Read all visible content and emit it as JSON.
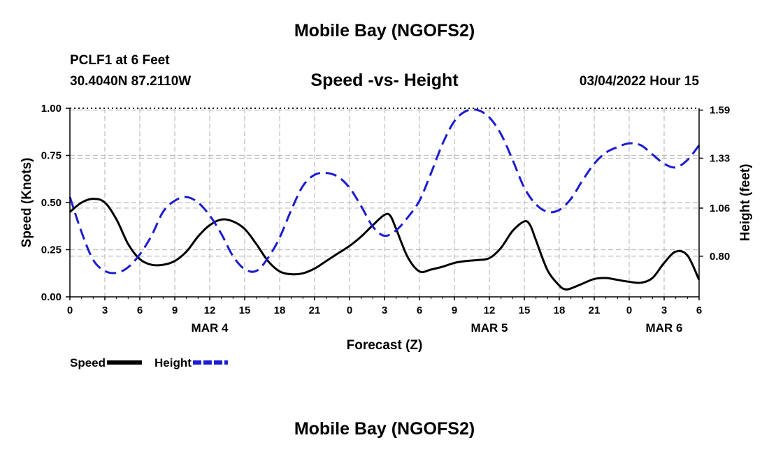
{
  "header": {
    "title": "Mobile Bay (NGOFS2)",
    "station": "PCLF1 at 6 Feet",
    "coords": "30.4040N  87.2110W",
    "subtitle": "Speed -vs- Height",
    "datetime": "03/04/2022 Hour 15"
  },
  "footer": {
    "title": "Mobile Bay (NGOFS2)"
  },
  "chart_data": {
    "type": "line",
    "title": "Speed -vs- Height",
    "xlabel": "Forecast (Z)",
    "ylabel": "Speed (Knots)",
    "y2label": "Height (feet)",
    "x_hours": [
      0,
      3,
      6,
      9,
      12,
      15,
      18,
      21,
      24,
      27,
      30,
      33,
      36,
      39,
      42,
      45,
      48,
      51,
      54
    ],
    "x_tick_labels": [
      "0",
      "3",
      "6",
      "9",
      "12",
      "15",
      "18",
      "21",
      "0",
      "3",
      "6",
      "9",
      "12",
      "15",
      "18",
      "21",
      "0",
      "3",
      "6"
    ],
    "date_labels": [
      {
        "label": "MAR 4",
        "hour": 12
      },
      {
        "label": "MAR 5",
        "hour": 36
      },
      {
        "label": "MAR 6",
        "hour": 51
      }
    ],
    "xlim": [
      0,
      54
    ],
    "ylim": [
      0,
      1.0
    ],
    "y_ticks": [
      0,
      0.25,
      0.5,
      0.75,
      1.0
    ],
    "y_tick_labels": [
      "0.00",
      "0.25",
      "0.50",
      "0.75",
      "1.00"
    ],
    "y2_ticks": [
      0.8,
      1.06,
      1.33,
      1.59
    ],
    "y2_tick_labels": [
      "0.80",
      "1.06",
      "1.33",
      "1.59"
    ],
    "y2lim": [
      0.58,
      1.6
    ],
    "grid": true,
    "legend_position": "bottom-left",
    "series": [
      {
        "name": "Speed",
        "color": "#000000",
        "dash": "solid",
        "axis": "left",
        "points": [
          [
            0,
            0.45
          ],
          [
            1,
            0.5
          ],
          [
            2,
            0.52
          ],
          [
            3,
            0.5
          ],
          [
            4,
            0.41
          ],
          [
            5,
            0.28
          ],
          [
            6,
            0.2
          ],
          [
            7,
            0.17
          ],
          [
            8,
            0.17
          ],
          [
            9,
            0.19
          ],
          [
            10,
            0.24
          ],
          [
            11,
            0.32
          ],
          [
            12,
            0.38
          ],
          [
            13,
            0.41
          ],
          [
            14,
            0.4
          ],
          [
            15,
            0.36
          ],
          [
            16,
            0.28
          ],
          [
            17,
            0.19
          ],
          [
            18,
            0.135
          ],
          [
            19,
            0.12
          ],
          [
            20,
            0.125
          ],
          [
            21,
            0.15
          ],
          [
            22,
            0.19
          ],
          [
            23,
            0.23
          ],
          [
            24,
            0.27
          ],
          [
            25,
            0.32
          ],
          [
            26,
            0.38
          ],
          [
            27,
            0.435
          ],
          [
            27.5,
            0.43
          ],
          [
            28,
            0.36
          ],
          [
            29,
            0.21
          ],
          [
            30,
            0.135
          ],
          [
            31,
            0.145
          ],
          [
            32,
            0.16
          ],
          [
            33,
            0.18
          ],
          [
            34,
            0.19
          ],
          [
            35,
            0.195
          ],
          [
            36,
            0.205
          ],
          [
            37,
            0.26
          ],
          [
            38,
            0.35
          ],
          [
            39,
            0.4
          ],
          [
            39.5,
            0.38
          ],
          [
            40,
            0.3
          ],
          [
            41,
            0.14
          ],
          [
            42,
            0.06
          ],
          [
            42.5,
            0.04
          ],
          [
            43,
            0.045
          ],
          [
            44,
            0.07
          ],
          [
            45,
            0.095
          ],
          [
            46,
            0.1
          ],
          [
            47,
            0.09
          ],
          [
            48,
            0.08
          ],
          [
            49,
            0.075
          ],
          [
            50,
            0.1
          ],
          [
            51,
            0.18
          ],
          [
            52,
            0.24
          ],
          [
            53,
            0.22
          ],
          [
            54,
            0.09
          ]
        ]
      },
      {
        "name": "Height",
        "color": "#1c1cd0",
        "dash": "dashed",
        "axis": "right",
        "points": [
          [
            0,
            1.12
          ],
          [
            1,
            0.93
          ],
          [
            2,
            0.78
          ],
          [
            3,
            0.72
          ],
          [
            4,
            0.71
          ],
          [
            5,
            0.74
          ],
          [
            6,
            0.81
          ],
          [
            7,
            0.91
          ],
          [
            8,
            1.04
          ],
          [
            9,
            1.1
          ],
          [
            10,
            1.12
          ],
          [
            11,
            1.09
          ],
          [
            12,
            1.02
          ],
          [
            13,
            0.92
          ],
          [
            14,
            0.8
          ],
          [
            15,
            0.73
          ],
          [
            16,
            0.72
          ],
          [
            17,
            0.79
          ],
          [
            18,
            0.9
          ],
          [
            19,
            1.05
          ],
          [
            20,
            1.18
          ],
          [
            21,
            1.24
          ],
          [
            22,
            1.25
          ],
          [
            23,
            1.23
          ],
          [
            24,
            1.17
          ],
          [
            25,
            1.07
          ],
          [
            26,
            0.96
          ],
          [
            27,
            0.91
          ],
          [
            28,
            0.94
          ],
          [
            29,
            1.01
          ],
          [
            30,
            1.1
          ],
          [
            31,
            1.25
          ],
          [
            32,
            1.41
          ],
          [
            33,
            1.53
          ],
          [
            34,
            1.585
          ],
          [
            35,
            1.59
          ],
          [
            36,
            1.55
          ],
          [
            37,
            1.46
          ],
          [
            38,
            1.32
          ],
          [
            39,
            1.17
          ],
          [
            40,
            1.08
          ],
          [
            41,
            1.04
          ],
          [
            42,
            1.05
          ],
          [
            43,
            1.11
          ],
          [
            44,
            1.21
          ],
          [
            45,
            1.3
          ],
          [
            46,
            1.36
          ],
          [
            47,
            1.39
          ],
          [
            48,
            1.41
          ],
          [
            49,
            1.4
          ],
          [
            50,
            1.35
          ],
          [
            51,
            1.3
          ],
          [
            52,
            1.28
          ],
          [
            53,
            1.32
          ],
          [
            54,
            1.4
          ]
        ]
      }
    ]
  }
}
